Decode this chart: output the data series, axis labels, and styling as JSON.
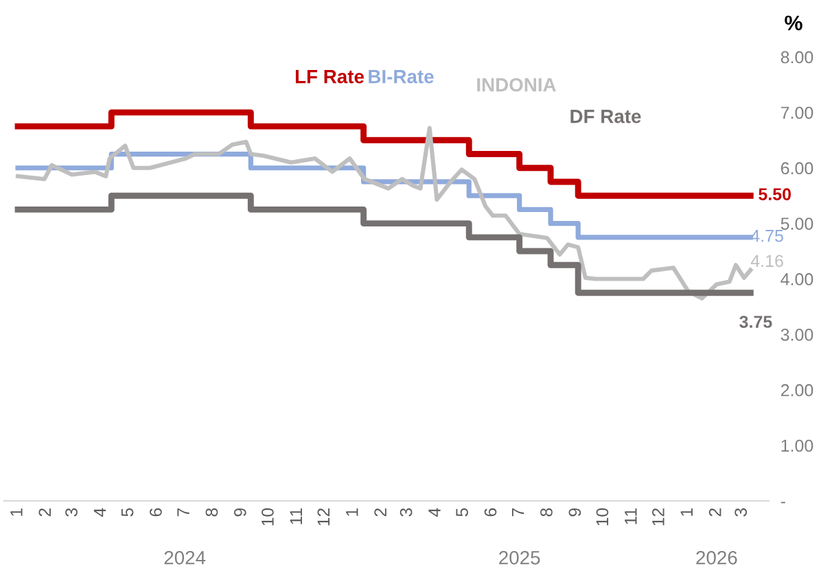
{
  "chart_data": {
    "type": "line",
    "ylabel": "%",
    "ylim": [
      0,
      8
    ],
    "yticks": [
      {
        "value": 0,
        "label": "-"
      },
      {
        "value": 1,
        "label": "1.00"
      },
      {
        "value": 2,
        "label": "2.00"
      },
      {
        "value": 3,
        "label": "3.00"
      },
      {
        "value": 4,
        "label": "4.00"
      },
      {
        "value": 5,
        "label": "5.00"
      },
      {
        "value": 6,
        "label": "6.00"
      },
      {
        "value": 7,
        "label": "7.00"
      },
      {
        "value": 8,
        "label": "8.00"
      }
    ],
    "xlim": [
      "2023-12-17",
      "2026-03-30"
    ],
    "xticks": [
      {
        "value": "2024-01-01",
        "label": "1"
      },
      {
        "value": "2024-02-01",
        "label": "2"
      },
      {
        "value": "2024-03-01",
        "label": "3"
      },
      {
        "value": "2024-04-01",
        "label": "4"
      },
      {
        "value": "2024-05-01",
        "label": "5"
      },
      {
        "value": "2024-06-01",
        "label": "6"
      },
      {
        "value": "2024-07-01",
        "label": "7"
      },
      {
        "value": "2024-08-01",
        "label": "8"
      },
      {
        "value": "2024-09-01",
        "label": "9"
      },
      {
        "value": "2024-10-01",
        "label": "10"
      },
      {
        "value": "2024-11-01",
        "label": "11"
      },
      {
        "value": "2024-12-01",
        "label": "12"
      },
      {
        "value": "2025-01-01",
        "label": "1"
      },
      {
        "value": "2025-02-01",
        "label": "2"
      },
      {
        "value": "2025-03-01",
        "label": "3"
      },
      {
        "value": "2025-04-01",
        "label": "4"
      },
      {
        "value": "2025-05-01",
        "label": "5"
      },
      {
        "value": "2025-06-01",
        "label": "6"
      },
      {
        "value": "2025-07-01",
        "label": "7"
      },
      {
        "value": "2025-08-01",
        "label": "8"
      },
      {
        "value": "2025-09-01",
        "label": "9"
      },
      {
        "value": "2025-10-01",
        "label": "10"
      },
      {
        "value": "2025-11-01",
        "label": "11"
      },
      {
        "value": "2025-12-01",
        "label": "12"
      },
      {
        "value": "2026-01-01",
        "label": "1"
      },
      {
        "value": "2026-02-01",
        "label": "2"
      },
      {
        "value": "2026-03-01",
        "label": "3"
      }
    ],
    "x2lim": [
      "2023-12-17",
      "2026-03-30"
    ],
    "x2ticks": [
      {
        "value": "2024-07-01",
        "label": "2024"
      },
      {
        "value": "2025-07-01",
        "label": "2025"
      },
      {
        "value": "2026-02-01",
        "label": "2026"
      }
    ],
    "grid": false,
    "legend": false,
    "marker": "none",
    "line_style": "solid",
    "series": [
      {
        "name": "LF Rate",
        "type": "step",
        "color": "#c00000",
        "x": [
          "2024-01-01",
          "2024-04-12",
          "2024-09-11",
          "2025-01-12",
          "2025-05-07",
          "2025-07-01",
          "2025-08-04",
          "2025-09-03",
          "2026-03-10"
        ],
        "values": [
          6.75,
          7.0,
          6.75,
          6.5,
          6.25,
          6.0,
          5.75,
          5.5,
          5.5
        ],
        "value_labels": [
          null,
          null,
          null,
          null,
          null,
          null,
          null,
          null,
          "5.50"
        ]
      },
      {
        "name": "BI-Rate",
        "type": "step",
        "color": "#8faadc",
        "x": [
          "2024-01-01",
          "2024-04-12",
          "2024-09-11",
          "2025-01-12",
          "2025-05-07",
          "2025-07-01",
          "2025-08-04",
          "2025-09-03",
          "2026-03-10"
        ],
        "values": [
          6.0,
          6.25,
          6.0,
          5.75,
          5.5,
          5.25,
          5.0,
          4.75,
          4.75
        ],
        "value_labels": [
          null,
          null,
          null,
          null,
          null,
          null,
          null,
          null,
          "4.75"
        ]
      },
      {
        "name": "INDONIA",
        "color": "#bfbfbf",
        "x": [
          "2024-01-01",
          "2024-01-30",
          "2024-02-07",
          "2024-02-29",
          "2024-03-25",
          "2024-04-06",
          "2024-04-10",
          "2024-04-27",
          "2024-05-06",
          "2024-05-24",
          "2024-07-02",
          "2024-07-12",
          "2024-08-07",
          "2024-08-22",
          "2024-09-06",
          "2024-09-11",
          "2024-09-25",
          "2024-10-25",
          "2024-11-20",
          "2024-12-09",
          "2024-12-28",
          "2025-01-13",
          "2025-02-08",
          "2025-02-23",
          "2025-03-07",
          "2025-03-15",
          "2025-03-25",
          "2025-04-02",
          "2025-04-17",
          "2025-04-29",
          "2025-05-13",
          "2025-05-25",
          "2025-06-02",
          "2025-06-16",
          "2025-07-01",
          "2025-07-31",
          "2025-08-14",
          "2025-08-23",
          "2025-09-03",
          "2025-09-11",
          "2025-09-22",
          "2025-11-13",
          "2025-11-22",
          "2025-12-16",
          "2026-01-01",
          "2026-01-16",
          "2026-02-01",
          "2026-02-15",
          "2026-02-22",
          "2026-03-03",
          "2026-03-10"
        ],
        "values": [
          5.85,
          5.8,
          6.05,
          5.88,
          5.93,
          5.85,
          6.17,
          6.4,
          6.0,
          6.0,
          6.17,
          6.25,
          6.25,
          6.42,
          6.47,
          6.25,
          6.22,
          6.1,
          6.17,
          5.93,
          6.17,
          5.8,
          5.63,
          5.8,
          5.68,
          5.63,
          6.72,
          5.43,
          5.75,
          5.97,
          5.8,
          5.31,
          5.14,
          5.14,
          4.81,
          4.74,
          4.44,
          4.62,
          4.57,
          4.02,
          4.0,
          4.0,
          4.15,
          4.2,
          3.78,
          3.65,
          3.9,
          3.95,
          4.25,
          4.02,
          4.16
        ],
        "value_labels": [
          null,
          null,
          null,
          null,
          null,
          null,
          null,
          null,
          null,
          null,
          null,
          null,
          null,
          null,
          null,
          null,
          null,
          null,
          null,
          null,
          null,
          null,
          null,
          null,
          null,
          null,
          null,
          null,
          null,
          null,
          null,
          null,
          null,
          null,
          null,
          null,
          null,
          null,
          null,
          null,
          null,
          null,
          null,
          null,
          null,
          null,
          null,
          null,
          null,
          null,
          "4.16"
        ]
      },
      {
        "name": "DF Rate",
        "type": "step",
        "color": "#767171",
        "x": [
          "2024-01-01",
          "2024-04-12",
          "2024-09-11",
          "2025-01-12",
          "2025-05-07",
          "2025-07-01",
          "2025-08-04",
          "2025-09-03",
          "2026-03-10"
        ],
        "values": [
          5.25,
          5.5,
          5.25,
          5.0,
          4.75,
          4.5,
          4.25,
          3.75,
          3.75
        ],
        "value_labels": [
          null,
          null,
          null,
          null,
          null,
          null,
          null,
          null,
          "3.75"
        ]
      }
    ]
  }
}
